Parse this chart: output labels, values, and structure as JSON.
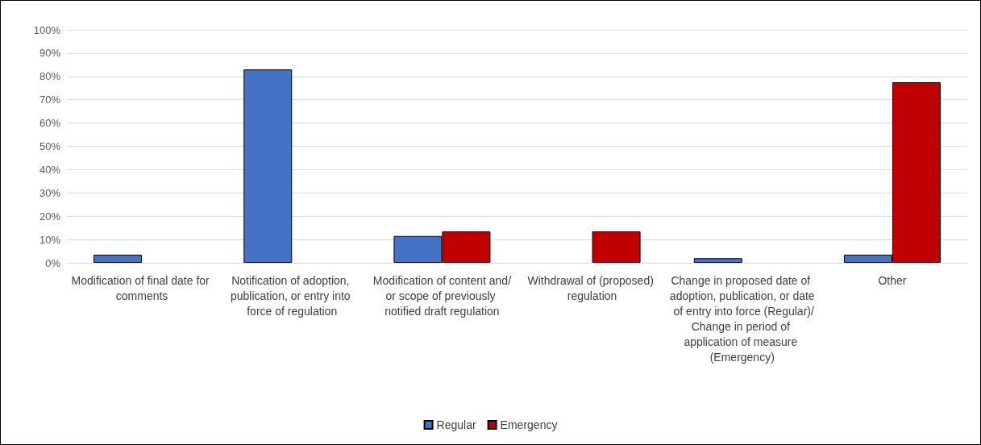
{
  "chart_data": {
    "type": "bar",
    "categories": [
      "Modification of final date for comments",
      "Notification of adoption, publication, or entry into force of regulation",
      "Modification of content and/or scope of previously notified draft regulation",
      "Withdrawal of (proposed) regulation",
      "Change in proposed date of adoption, publication, or date of entry into force (Regular)/Change in period of application of measure (Emergency)",
      "Other"
    ],
    "series": [
      {
        "name": "Regular",
        "color": "#4472c4",
        "values": [
          3.5,
          83,
          11.5,
          null,
          2,
          3.5
        ]
      },
      {
        "name": "Emergency",
        "color": "#c00000",
        "values": [
          null,
          null,
          13.5,
          13.5,
          null,
          77.5
        ]
      }
    ],
    "ylim": [
      0,
      100
    ],
    "yticks": [
      {
        "value": 0,
        "label": "0%"
      },
      {
        "value": 10,
        "label": "10%"
      },
      {
        "value": 20,
        "label": "20%"
      },
      {
        "value": 30,
        "label": "30%"
      },
      {
        "value": 40,
        "label": "40%"
      },
      {
        "value": 50,
        "label": "50%"
      },
      {
        "value": 60,
        "label": "60%"
      },
      {
        "value": 70,
        "label": "70%"
      },
      {
        "value": 80,
        "label": "80%"
      },
      {
        "value": 90,
        "label": "90%"
      },
      {
        "value": 100,
        "label": "100%"
      }
    ],
    "grid": "y",
    "legend": "bottom"
  }
}
